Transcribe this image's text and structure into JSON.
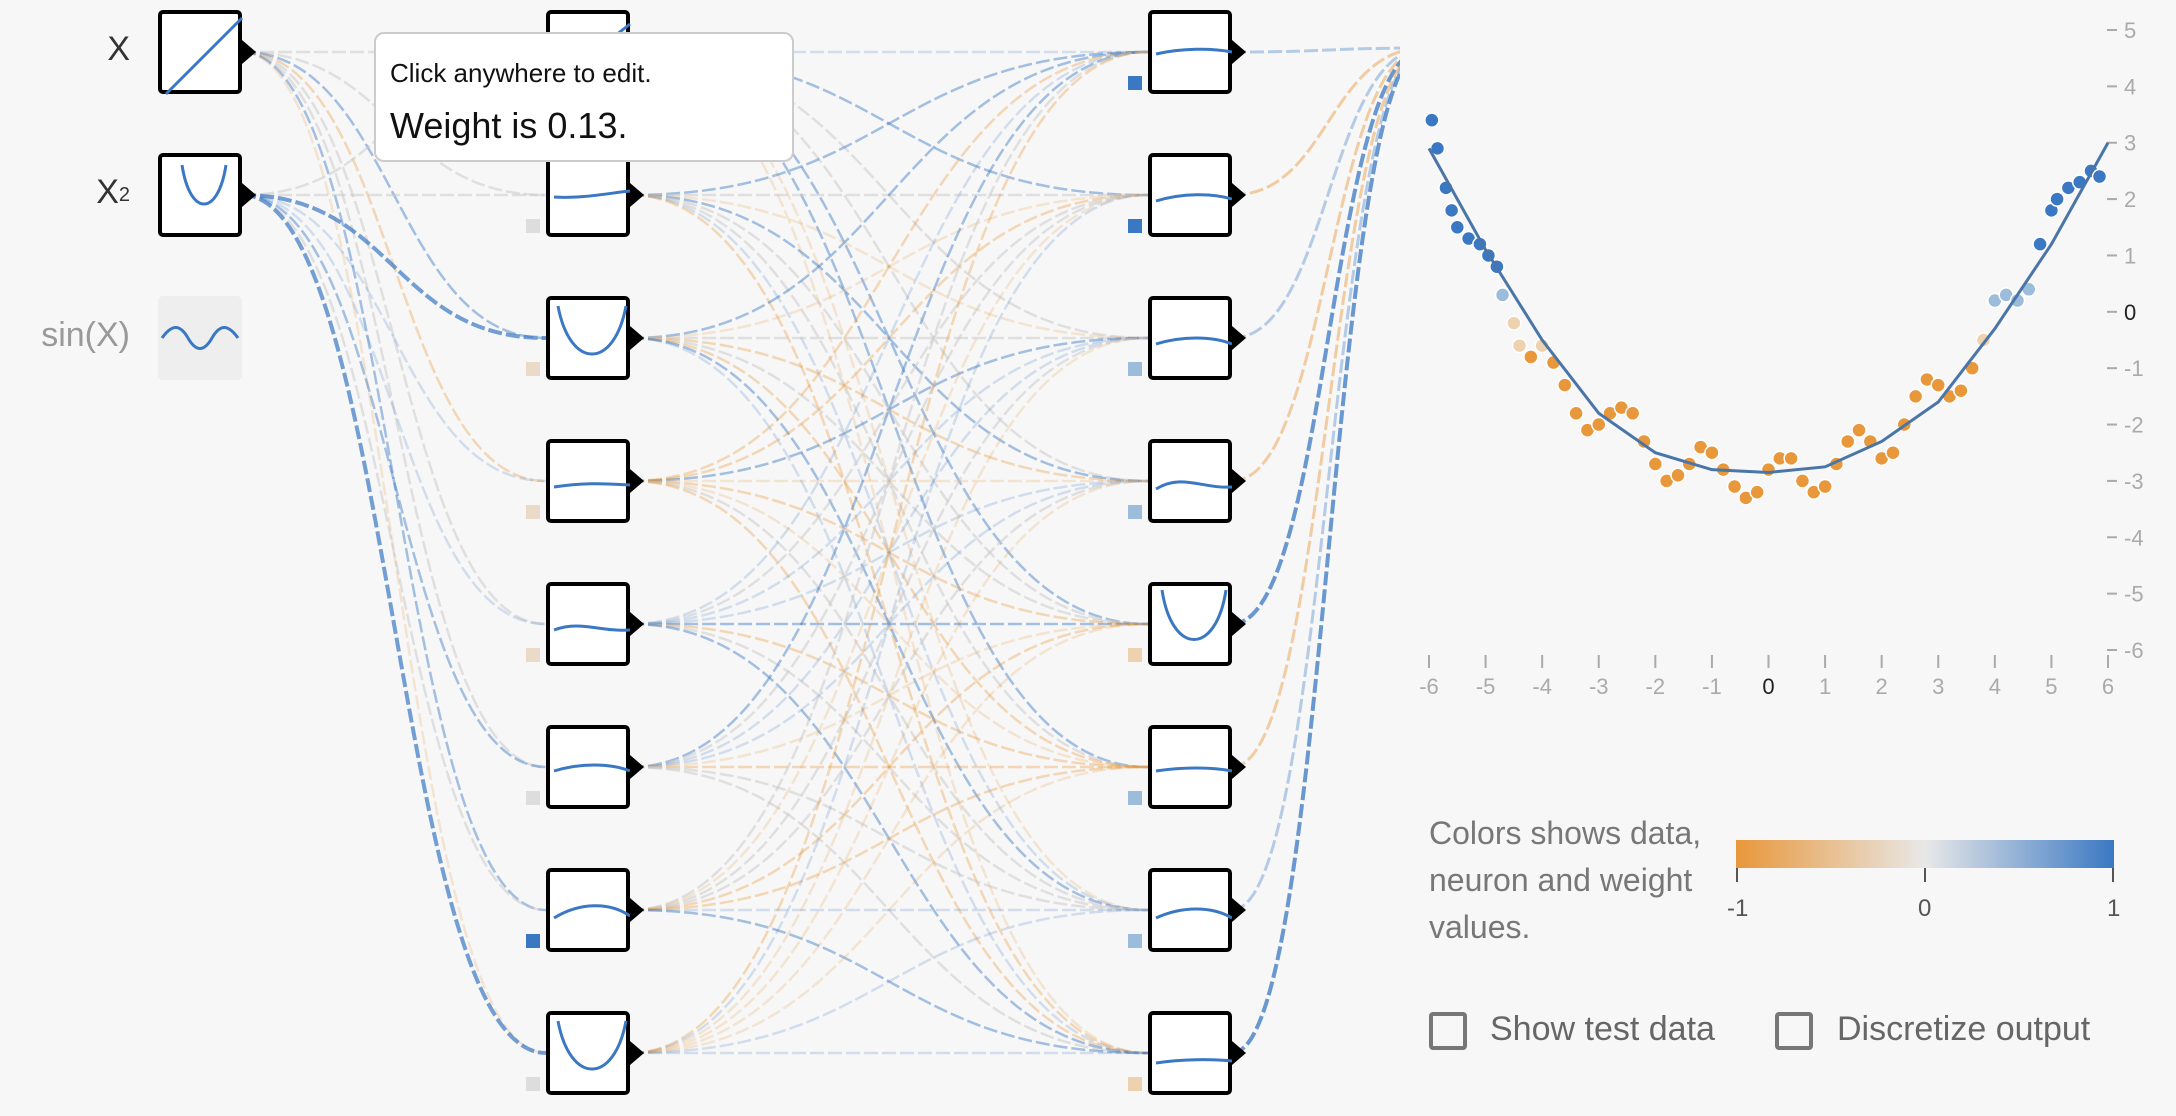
{
  "inputs": [
    {
      "label": "X",
      "sup": "",
      "active": true
    },
    {
      "label": "X",
      "sup": "2",
      "active": true
    },
    {
      "label": "sin(X)",
      "sup": "",
      "active": false
    }
  ],
  "tooltip": {
    "hint": "Click anywhere to edit.",
    "weight_text": "Weight is 0.13."
  },
  "colors": {
    "orange": "#e8973a",
    "mid": "#e8e8e8",
    "blue": "#3a78c3"
  },
  "output_plot": {
    "y_ticks": [
      "5",
      "4",
      "3",
      "2",
      "1",
      "0",
      "-1",
      "-2",
      "-3",
      "-4",
      "-5",
      "-6"
    ],
    "x_ticks": [
      "-6",
      "-5",
      "-4",
      "-3",
      "-2",
      "-1",
      "0",
      "1",
      "2",
      "3",
      "4",
      "5",
      "6"
    ]
  },
  "legend": {
    "text": "Colors shows data, neuron and weight values.",
    "ticks": [
      "-1",
      "0",
      "1"
    ]
  },
  "controls": {
    "show_test_data": "Show test data",
    "discretize_output": "Discretize output"
  },
  "chart_data": {
    "type": "scatter",
    "title": "",
    "xlabel": "",
    "ylabel": "",
    "xlim": [
      -6,
      6
    ],
    "ylim": [
      -6,
      5
    ],
    "x_ticks": [
      -6,
      -5,
      -4,
      -3,
      -2,
      -1,
      0,
      1,
      2,
      3,
      4,
      5,
      6
    ],
    "y_ticks": [
      5,
      4,
      3,
      2,
      1,
      0,
      -1,
      -2,
      -3,
      -4,
      -5,
      -6
    ],
    "fitted_curve": [
      {
        "x": -6,
        "y": 2.9
      },
      {
        "x": -5,
        "y": 1.1
      },
      {
        "x": -4,
        "y": -0.5
      },
      {
        "x": -3,
        "y": -1.8
      },
      {
        "x": -2,
        "y": -2.5
      },
      {
        "x": -1,
        "y": -2.8
      },
      {
        "x": 0,
        "y": -2.85
      },
      {
        "x": 1,
        "y": -2.75
      },
      {
        "x": 2,
        "y": -2.3
      },
      {
        "x": 3,
        "y": -1.6
      },
      {
        "x": 4,
        "y": -0.3
      },
      {
        "x": 5,
        "y": 1.2
      },
      {
        "x": 6,
        "y": 3.0
      }
    ],
    "points": [
      {
        "x": -5.95,
        "y": 3.4
      },
      {
        "x": -5.85,
        "y": 2.9
      },
      {
        "x": -5.7,
        "y": 2.2
      },
      {
        "x": -5.6,
        "y": 1.8
      },
      {
        "x": -5.5,
        "y": 1.5
      },
      {
        "x": -5.3,
        "y": 1.3
      },
      {
        "x": -5.1,
        "y": 1.2
      },
      {
        "x": -4.95,
        "y": 1.0
      },
      {
        "x": -4.8,
        "y": 0.8
      },
      {
        "x": -4.7,
        "y": 0.3
      },
      {
        "x": -4.5,
        "y": -0.2
      },
      {
        "x": -4.4,
        "y": -0.6
      },
      {
        "x": -4.2,
        "y": -0.8
      },
      {
        "x": -4.0,
        "y": -0.6
      },
      {
        "x": -3.8,
        "y": -0.9
      },
      {
        "x": -3.6,
        "y": -1.3
      },
      {
        "x": -3.4,
        "y": -1.8
      },
      {
        "x": -3.2,
        "y": -2.1
      },
      {
        "x": -3.0,
        "y": -2.0
      },
      {
        "x": -2.8,
        "y": -1.8
      },
      {
        "x": -2.6,
        "y": -1.7
      },
      {
        "x": -2.4,
        "y": -1.8
      },
      {
        "x": -2.2,
        "y": -2.3
      },
      {
        "x": -2.0,
        "y": -2.7
      },
      {
        "x": -1.8,
        "y": -3.0
      },
      {
        "x": -1.6,
        "y": -2.9
      },
      {
        "x": -1.4,
        "y": -2.7
      },
      {
        "x": -1.2,
        "y": -2.4
      },
      {
        "x": -1.0,
        "y": -2.5
      },
      {
        "x": -0.8,
        "y": -2.8
      },
      {
        "x": -0.6,
        "y": -3.1
      },
      {
        "x": -0.4,
        "y": -3.3
      },
      {
        "x": -0.2,
        "y": -3.2
      },
      {
        "x": 0.0,
        "y": -2.8
      },
      {
        "x": 0.2,
        "y": -2.6
      },
      {
        "x": 0.4,
        "y": -2.6
      },
      {
        "x": 0.6,
        "y": -3.0
      },
      {
        "x": 0.8,
        "y": -3.2
      },
      {
        "x": 1.0,
        "y": -3.1
      },
      {
        "x": 1.2,
        "y": -2.7
      },
      {
        "x": 1.4,
        "y": -2.3
      },
      {
        "x": 1.6,
        "y": -2.1
      },
      {
        "x": 1.8,
        "y": -2.3
      },
      {
        "x": 2.0,
        "y": -2.6
      },
      {
        "x": 2.2,
        "y": -2.5
      },
      {
        "x": 2.4,
        "y": -2.0
      },
      {
        "x": 2.6,
        "y": -1.5
      },
      {
        "x": 2.8,
        "y": -1.2
      },
      {
        "x": 3.0,
        "y": -1.3
      },
      {
        "x": 3.2,
        "y": -1.5
      },
      {
        "x": 3.4,
        "y": -1.4
      },
      {
        "x": 3.6,
        "y": -1.0
      },
      {
        "x": 3.8,
        "y": -0.5
      },
      {
        "x": 4.0,
        "y": 0.2
      },
      {
        "x": 4.2,
        "y": 0.3
      },
      {
        "x": 4.4,
        "y": 0.2
      },
      {
        "x": 4.6,
        "y": 0.4
      },
      {
        "x": 4.8,
        "y": 1.2
      },
      {
        "x": 5.0,
        "y": 1.8
      },
      {
        "x": 5.1,
        "y": 2.0
      },
      {
        "x": 5.3,
        "y": 2.2
      },
      {
        "x": 5.5,
        "y": 2.3
      },
      {
        "x": 5.7,
        "y": 2.5
      },
      {
        "x": 5.85,
        "y": 2.4
      }
    ]
  }
}
